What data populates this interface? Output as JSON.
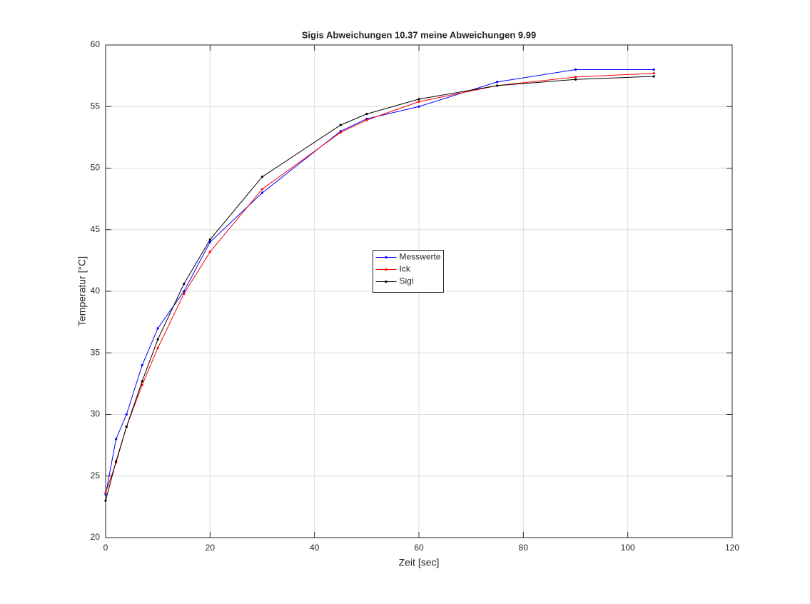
{
  "chart_data": {
    "type": "line",
    "title": "Sigis Abweichungen 10.37 meine Abweichungen 9.99",
    "x_label": "Zeit [sec]",
    "y_label": "Temperatur [°C]",
    "x": [
      0,
      2,
      4,
      7,
      10,
      15,
      20,
      30,
      45,
      50,
      60,
      75,
      90,
      105
    ],
    "series": [
      {
        "name": "Messwerte",
        "color": "#0000ff",
        "values": [
          23.5,
          28,
          30,
          34,
          37,
          40,
          44,
          48,
          53,
          54,
          55,
          57,
          58,
          58
        ]
      },
      {
        "name": "Ick",
        "color": "#ff0000",
        "values": [
          23.65,
          26.1,
          29,
          32.4,
          35.4,
          39.8,
          43.2,
          48.3,
          52.9,
          53.9,
          55.4,
          56.7,
          57.4,
          57.7
        ]
      },
      {
        "name": "Sigi",
        "color": "#000000",
        "values": [
          23,
          26.2,
          29,
          32.7,
          36.1,
          40.6,
          44.2,
          49.3,
          53.5,
          54.4,
          55.6,
          56.7,
          57.2,
          57.45
        ]
      }
    ],
    "xlim": [
      0,
      120
    ],
    "xticks": [
      0,
      20,
      40,
      60,
      80,
      100,
      120
    ],
    "ylim": [
      20,
      60
    ],
    "yticks": [
      20,
      25,
      30,
      35,
      40,
      45,
      50,
      55,
      60
    ],
    "grid": true,
    "legend_location": "center"
  }
}
